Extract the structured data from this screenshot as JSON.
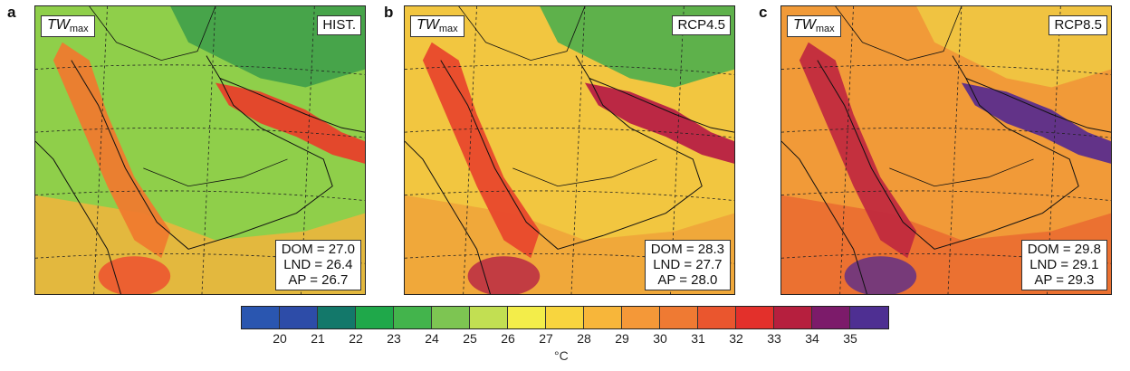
{
  "panels": [
    {
      "letter": "a",
      "variable_main": "TW",
      "variable_sub": "max",
      "scenario": "HIST.",
      "dom": "DOM = 27.0",
      "lnd": "LND = 26.4",
      "ap": "AP = 26.7",
      "base_color": "#8fcf4a",
      "gulf_color": "#e8402a",
      "redsea_color": "#ef7a2e",
      "north_color": "#3f9e4a",
      "hot_color": "#ee4a2e",
      "south_color": "#f2b43c"
    },
    {
      "letter": "b",
      "variable_main": "TW",
      "variable_sub": "max",
      "scenario": "RCP4.5",
      "dom": "DOM = 28.3",
      "lnd": "LND = 27.7",
      "ap": "AP = 28.0",
      "base_color": "#f2c640",
      "gulf_color": "#b72045",
      "redsea_color": "#e8482c",
      "north_color": "#4eae4c",
      "hot_color": "#b72045",
      "south_color": "#f0a23a"
    },
    {
      "letter": "c",
      "variable_main": "TW",
      "variable_sub": "max",
      "scenario": "RCP8.5",
      "dom": "DOM = 29.8",
      "lnd": "LND = 29.1",
      "ap": "AP = 29.3",
      "base_color": "#f19a38",
      "gulf_color": "#5a2d8c",
      "redsea_color": "#c12a3e",
      "north_color": "#f0c842",
      "hot_color": "#5a2d8c",
      "south_color": "#ea6a30"
    }
  ],
  "colorbar": {
    "colors": [
      "#2a56b0",
      "#2d4ca8",
      "#13786a",
      "#1fa84a",
      "#43b44c",
      "#7dc552",
      "#c2df52",
      "#f3ed4a",
      "#f8d53e",
      "#f7b63a",
      "#f49838",
      "#ef7a33",
      "#ea562e",
      "#e3302b",
      "#b61f3e",
      "#7c1b6a",
      "#4e2f92"
    ],
    "ticks": [
      "20",
      "21",
      "22",
      "23",
      "24",
      "25",
      "26",
      "27",
      "28",
      "29",
      "30",
      "31",
      "32",
      "33",
      "34",
      "35"
    ],
    "unit": "°C"
  }
}
